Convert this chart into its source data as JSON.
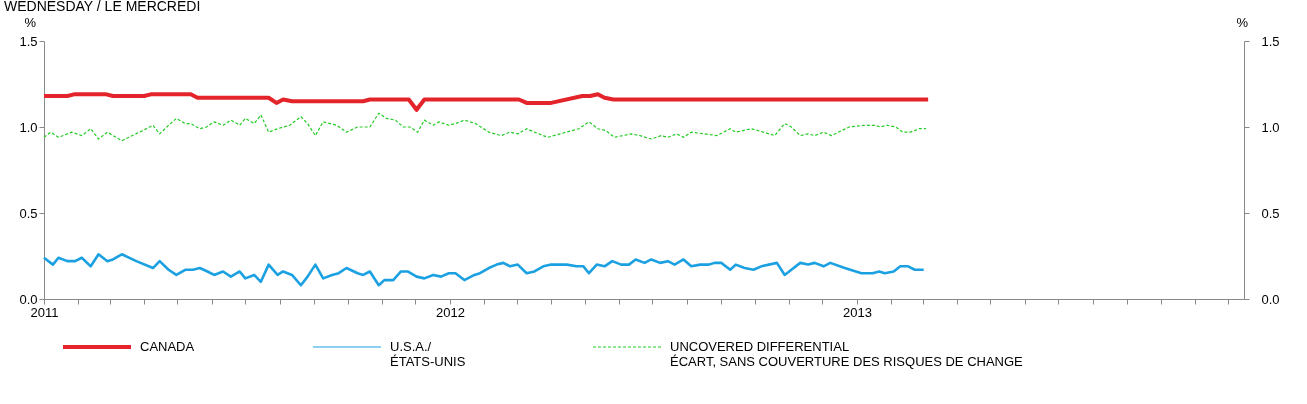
{
  "chart_data": {
    "type": "line",
    "title": "WEDNESDAY / LE MERCREDI",
    "ylabel": "%",
    "y2label": "%",
    "xlim": [
      "2011-01-01",
      "2013-12-15"
    ],
    "xticks": [
      {
        "value": "2011-01-01",
        "label": "2011"
      },
      {
        "value": "2011-02-01",
        "label": null
      },
      {
        "value": "2011-03-01",
        "label": null
      },
      {
        "value": "2011-04-01",
        "label": null
      },
      {
        "value": "2011-05-01",
        "label": null
      },
      {
        "value": "2011-06-01",
        "label": null
      },
      {
        "value": "2011-07-01",
        "label": null
      },
      {
        "value": "2011-08-01",
        "label": null
      },
      {
        "value": "2011-09-01",
        "label": null
      },
      {
        "value": "2011-10-01",
        "label": null
      },
      {
        "value": "2011-11-01",
        "label": null
      },
      {
        "value": "2011-12-01",
        "label": null
      },
      {
        "value": "2012-01-01",
        "label": "2012"
      },
      {
        "value": "2012-02-01",
        "label": null
      },
      {
        "value": "2012-03-01",
        "label": null
      },
      {
        "value": "2012-04-01",
        "label": null
      },
      {
        "value": "2012-05-01",
        "label": null
      },
      {
        "value": "2012-06-01",
        "label": null
      },
      {
        "value": "2012-07-01",
        "label": null
      },
      {
        "value": "2012-08-01",
        "label": null
      },
      {
        "value": "2012-09-01",
        "label": null
      },
      {
        "value": "2012-10-01",
        "label": null
      },
      {
        "value": "2012-11-01",
        "label": null
      },
      {
        "value": "2012-12-01",
        "label": null
      },
      {
        "value": "2013-01-01",
        "label": "2013"
      },
      {
        "value": "2013-02-01",
        "label": null
      },
      {
        "value": "2013-03-01",
        "label": null
      },
      {
        "value": "2013-04-01",
        "label": null
      },
      {
        "value": "2013-05-01",
        "label": null
      },
      {
        "value": "2013-06-01",
        "label": null
      },
      {
        "value": "2013-07-01",
        "label": null
      },
      {
        "value": "2013-08-01",
        "label": null
      },
      {
        "value": "2013-09-01",
        "label": null
      },
      {
        "value": "2013-10-01",
        "label": null
      },
      {
        "value": "2013-11-01",
        "label": null
      },
      {
        "value": "2013-12-01",
        "label": null
      }
    ],
    "ylim": [
      0,
      1.5
    ],
    "yticks": [
      {
        "value": 0,
        "label": "0.0"
      },
      0.5,
      {
        "value": 1,
        "label": "1.0"
      },
      1.5
    ],
    "y2lim": [
      0,
      1.5
    ],
    "y2ticks": [
      {
        "value": 0,
        "label": "0.0"
      },
      0.5,
      {
        "value": 1,
        "label": "1.0"
      },
      1.5
    ],
    "grid": false,
    "legend": "bottom",
    "marker": "none",
    "series": [
      {
        "name": "CANADA",
        "color": "#e3242b",
        "line_style": "solid",
        "x": [
          "2011-01-01",
          "2011-01-22",
          "2011-01-28",
          "2011-02-26",
          "2011-03-04",
          "2011-04-01",
          "2011-04-07",
          "2011-05-13",
          "2011-05-19",
          "2011-07-22",
          "2011-07-29",
          "2011-08-04",
          "2011-08-12",
          "2011-10-15",
          "2011-10-21",
          "2011-11-25",
          "2011-12-02",
          "2011-12-09",
          "2012-03-03",
          "2012-03-10",
          "2012-04-01",
          "2012-04-29",
          "2012-05-06",
          "2012-05-13",
          "2012-05-19",
          "2012-05-27",
          "2013-03-06"
        ],
        "values": [
          1.18,
          1.18,
          1.19,
          1.19,
          1.18,
          1.18,
          1.19,
          1.19,
          1.17,
          1.17,
          1.14,
          1.16,
          1.15,
          1.15,
          1.16,
          1.16,
          1.1,
          1.16,
          1.16,
          1.14,
          1.14,
          1.18,
          1.18,
          1.19,
          1.17,
          1.16,
          1.16
        ]
      },
      {
        "name": "U.S.A./\nÉTATS-UNIS",
        "color": "#1ba1e2",
        "line_style": "solid",
        "x": [
          "2011-01-01",
          "2011-01-09",
          "2011-01-14",
          "2011-01-22",
          "2011-01-29",
          "2011-02-04",
          "2011-02-12",
          "2011-02-19",
          "2011-02-27",
          "2011-03-04",
          "2011-03-12",
          "2011-03-25",
          "2011-04-09",
          "2011-04-15",
          "2011-04-23",
          "2011-04-30",
          "2011-05-08",
          "2011-05-15",
          "2011-05-21",
          "2011-05-28",
          "2011-06-03",
          "2011-06-11",
          "2011-06-18",
          "2011-06-26",
          "2011-07-01",
          "2011-07-09",
          "2011-07-15",
          "2011-07-22",
          "2011-07-30",
          "2011-08-04",
          "2011-08-12",
          "2011-08-20",
          "2011-08-26",
          "2011-09-02",
          "2011-09-09",
          "2011-09-17",
          "2011-09-23",
          "2011-09-30",
          "2011-10-10",
          "2011-10-15",
          "2011-10-21",
          "2011-10-29",
          "2011-11-03",
          "2011-11-11",
          "2011-11-18",
          "2011-11-24",
          "2011-12-02",
          "2011-12-09",
          "2011-12-17",
          "2011-12-24",
          "2011-12-31",
          "2012-01-06",
          "2012-01-14",
          "2012-01-23",
          "2012-01-28",
          "2012-02-05",
          "2012-02-12",
          "2012-02-18",
          "2012-02-24",
          "2012-03-02",
          "2012-03-10",
          "2012-03-17",
          "2012-03-25",
          "2012-04-01",
          "2012-04-15",
          "2012-04-24",
          "2012-04-30",
          "2012-05-05",
          "2012-05-12",
          "2012-05-19",
          "2012-05-26",
          "2012-06-03",
          "2012-06-10",
          "2012-06-16",
          "2012-06-24",
          "2012-06-30",
          "2012-07-08",
          "2012-07-15",
          "2012-07-21",
          "2012-07-29",
          "2012-08-05",
          "2012-08-13",
          "2012-08-21",
          "2012-08-26",
          "2012-09-01",
          "2012-09-09",
          "2012-09-14",
          "2012-09-22",
          "2012-09-30",
          "2012-10-07",
          "2012-10-21",
          "2012-10-28",
          "2012-11-03",
          "2012-11-11",
          "2012-11-18",
          "2012-11-24",
          "2012-12-02",
          "2012-12-08",
          "2012-12-21",
          "2013-01-05",
          "2013-01-15",
          "2013-01-21",
          "2013-01-26",
          "2013-02-03",
          "2013-02-09",
          "2013-02-16",
          "2013-02-22",
          "2013-03-02"
        ],
        "values": [
          0.24,
          0.2,
          0.24,
          0.22,
          0.22,
          0.24,
          0.19,
          0.26,
          0.22,
          0.23,
          0.26,
          0.22,
          0.18,
          0.22,
          0.17,
          0.14,
          0.17,
          0.17,
          0.18,
          0.16,
          0.14,
          0.16,
          0.13,
          0.16,
          0.12,
          0.14,
          0.1,
          0.2,
          0.14,
          0.16,
          0.14,
          0.08,
          0.13,
          0.2,
          0.12,
          0.14,
          0.15,
          0.18,
          0.15,
          0.14,
          0.16,
          0.08,
          0.11,
          0.11,
          0.16,
          0.16,
          0.13,
          0.12,
          0.14,
          0.13,
          0.15,
          0.15,
          0.11,
          0.14,
          0.15,
          0.18,
          0.2,
          0.21,
          0.19,
          0.2,
          0.15,
          0.16,
          0.19,
          0.2,
          0.2,
          0.19,
          0.19,
          0.15,
          0.2,
          0.19,
          0.22,
          0.2,
          0.2,
          0.23,
          0.21,
          0.23,
          0.21,
          0.22,
          0.2,
          0.23,
          0.19,
          0.2,
          0.2,
          0.21,
          0.21,
          0.17,
          0.2,
          0.18,
          0.17,
          0.19,
          0.21,
          0.14,
          0.17,
          0.21,
          0.2,
          0.21,
          0.19,
          0.21,
          0.18,
          0.15,
          0.15,
          0.16,
          0.15,
          0.16,
          0.19,
          0.19,
          0.17,
          0.17
        ]
      },
      {
        "name": "UNCOVERED DIFFERENTIAL\nÉCART, SANS COUVERTURE DES RISQUES DE CHANGE",
        "color": "#22cc22",
        "line_style": "dashed",
        "x": [
          "2011-01-01",
          "2011-01-07",
          "2011-01-14",
          "2011-01-26",
          "2011-02-04",
          "2011-02-12",
          "2011-02-19",
          "2011-02-27",
          "2011-03-12",
          "2011-03-31",
          "2011-04-09",
          "2011-04-15",
          "2011-04-23",
          "2011-04-30",
          "2011-05-08",
          "2011-05-13",
          "2011-05-21",
          "2011-05-27",
          "2011-06-03",
          "2011-06-11",
          "2011-06-18",
          "2011-06-26",
          "2011-07-01",
          "2011-07-09",
          "2011-07-15",
          "2011-07-22",
          "2011-07-30",
          "2011-08-10",
          "2011-08-20",
          "2011-08-26",
          "2011-09-02",
          "2011-09-09",
          "2011-09-21",
          "2011-09-30",
          "2011-10-10",
          "2011-10-21",
          "2011-10-29",
          "2011-11-05",
          "2011-11-13",
          "2011-11-20",
          "2011-11-26",
          "2011-12-03",
          "2011-12-09",
          "2011-12-17",
          "2011-12-22",
          "2011-12-31",
          "2012-01-06",
          "2012-01-14",
          "2012-01-24",
          "2012-02-05",
          "2012-02-16",
          "2012-02-24",
          "2012-03-02",
          "2012-03-10",
          "2012-03-17",
          "2012-03-29",
          "2012-04-09",
          "2012-04-26",
          "2012-05-05",
          "2012-05-13",
          "2012-05-20",
          "2012-05-28",
          "2012-06-12",
          "2012-06-20",
          "2012-06-30",
          "2012-07-09",
          "2012-07-15",
          "2012-07-23",
          "2012-07-29",
          "2012-08-05",
          "2012-08-17",
          "2012-08-28",
          "2012-09-09",
          "2012-09-14",
          "2012-09-28",
          "2012-10-09",
          "2012-10-19",
          "2012-10-28",
          "2012-11-03",
          "2012-11-11",
          "2012-11-18",
          "2012-11-24",
          "2012-12-02",
          "2012-12-09",
          "2012-12-25",
          "2013-01-07",
          "2013-01-17",
          "2013-01-22",
          "2013-01-28",
          "2013-02-05",
          "2013-02-11",
          "2013-02-18",
          "2013-02-26",
          "2013-03-04"
        ],
        "values": [
          0.94,
          0.97,
          0.94,
          0.97,
          0.95,
          0.99,
          0.93,
          0.97,
          0.92,
          0.98,
          1.01,
          0.96,
          1.01,
          1.05,
          1.02,
          1.02,
          0.99,
          1.0,
          1.03,
          1.01,
          1.04,
          1.01,
          1.05,
          1.02,
          1.07,
          0.97,
          0.99,
          1.01,
          1.06,
          1.02,
          0.95,
          1.03,
          1.01,
          0.97,
          1.0,
          1.0,
          1.08,
          1.05,
          1.04,
          1.0,
          1.0,
          0.97,
          1.04,
          1.01,
          1.03,
          1.01,
          1.02,
          1.04,
          1.02,
          0.97,
          0.95,
          0.97,
          0.96,
          0.99,
          0.97,
          0.94,
          0.96,
          0.99,
          1.03,
          0.99,
          0.98,
          0.94,
          0.96,
          0.95,
          0.93,
          0.95,
          0.94,
          0.96,
          0.94,
          0.97,
          0.96,
          0.95,
          0.99,
          0.97,
          0.99,
          0.97,
          0.95,
          1.02,
          1.0,
          0.95,
          0.96,
          0.95,
          0.97,
          0.95,
          1.0,
          1.01,
          1.01,
          1.0,
          1.01,
          1.0,
          0.97,
          0.97,
          0.99,
          0.99
        ]
      }
    ]
  }
}
